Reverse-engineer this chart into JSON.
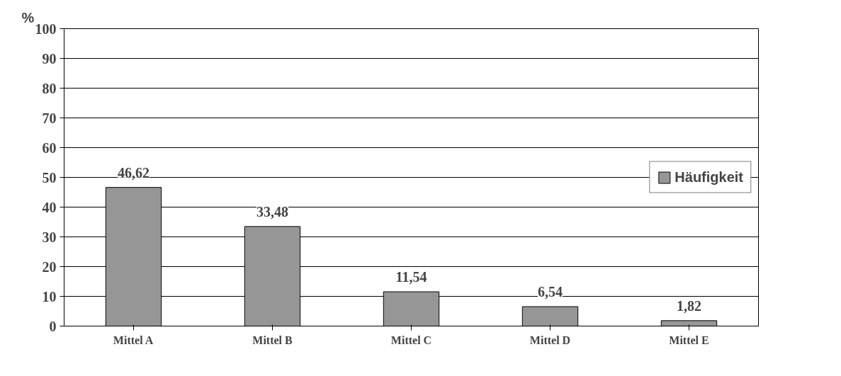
{
  "chart_data": {
    "type": "bar",
    "ylabel": "%",
    "categories": [
      "Mittel A",
      "Mittel B",
      "Mittel C",
      "Mittel D",
      "Mittel E"
    ],
    "series": [
      {
        "name": "Häufigkeit",
        "color": "#969696",
        "values": [
          46.62,
          33.48,
          11.54,
          6.54,
          1.82
        ]
      }
    ],
    "value_labels": [
      "46,62",
      "33,48",
      "11,54",
      "6,54",
      "1,82"
    ],
    "ylim": [
      0,
      100
    ],
    "yticks": [
      0,
      10,
      20,
      30,
      40,
      50,
      60,
      70,
      80,
      90,
      100
    ],
    "grid": "y",
    "legend": "right"
  }
}
